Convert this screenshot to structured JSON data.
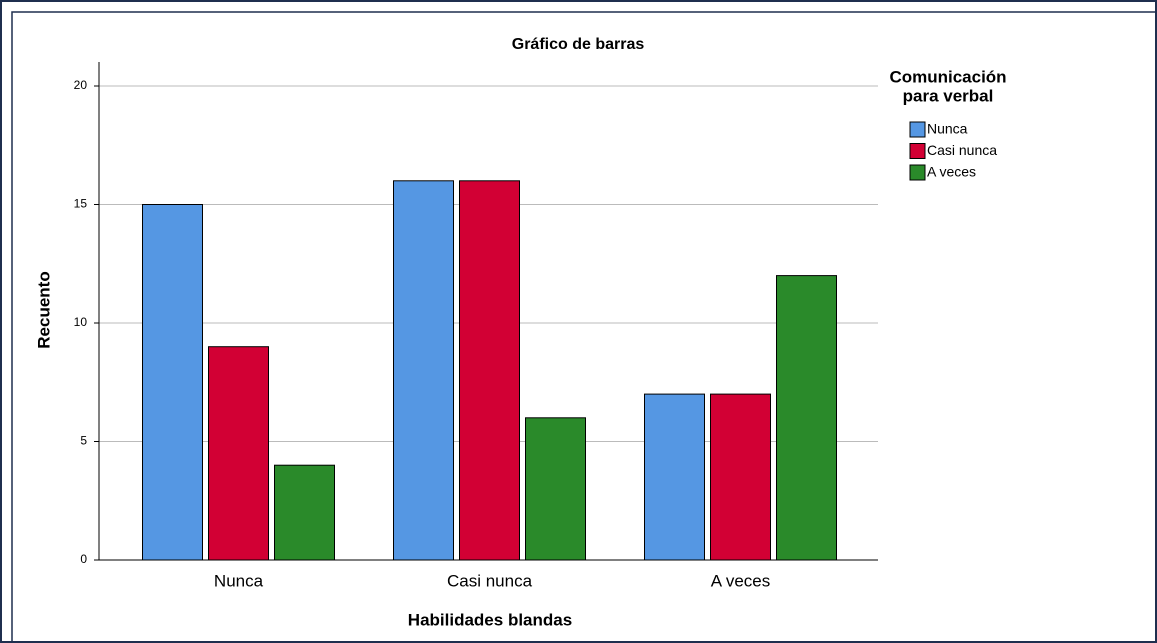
{
  "chart_data": {
    "type": "bar",
    "title": "Gráfico de barras",
    "x_label": "Habilidades blandas",
    "y_label": "Recuento",
    "legend_title": [
      "Comunicación",
      "para verbal"
    ],
    "categories": [
      "Nunca",
      "Casi nunca",
      "A veces"
    ],
    "series": [
      {
        "name": "Nunca",
        "color": "#5597e3",
        "values": [
          15,
          16,
          7
        ]
      },
      {
        "name": "Casi nunca",
        "color": "#d20034",
        "values": [
          9,
          16,
          7
        ]
      },
      {
        "name": "A veces",
        "color": "#2a8a2a",
        "values": [
          4,
          6,
          12
        ]
      }
    ],
    "ylim": [
      0,
      20
    ],
    "yticks": [
      0,
      5,
      10,
      15,
      20
    ],
    "grid": true,
    "legend": "right"
  }
}
